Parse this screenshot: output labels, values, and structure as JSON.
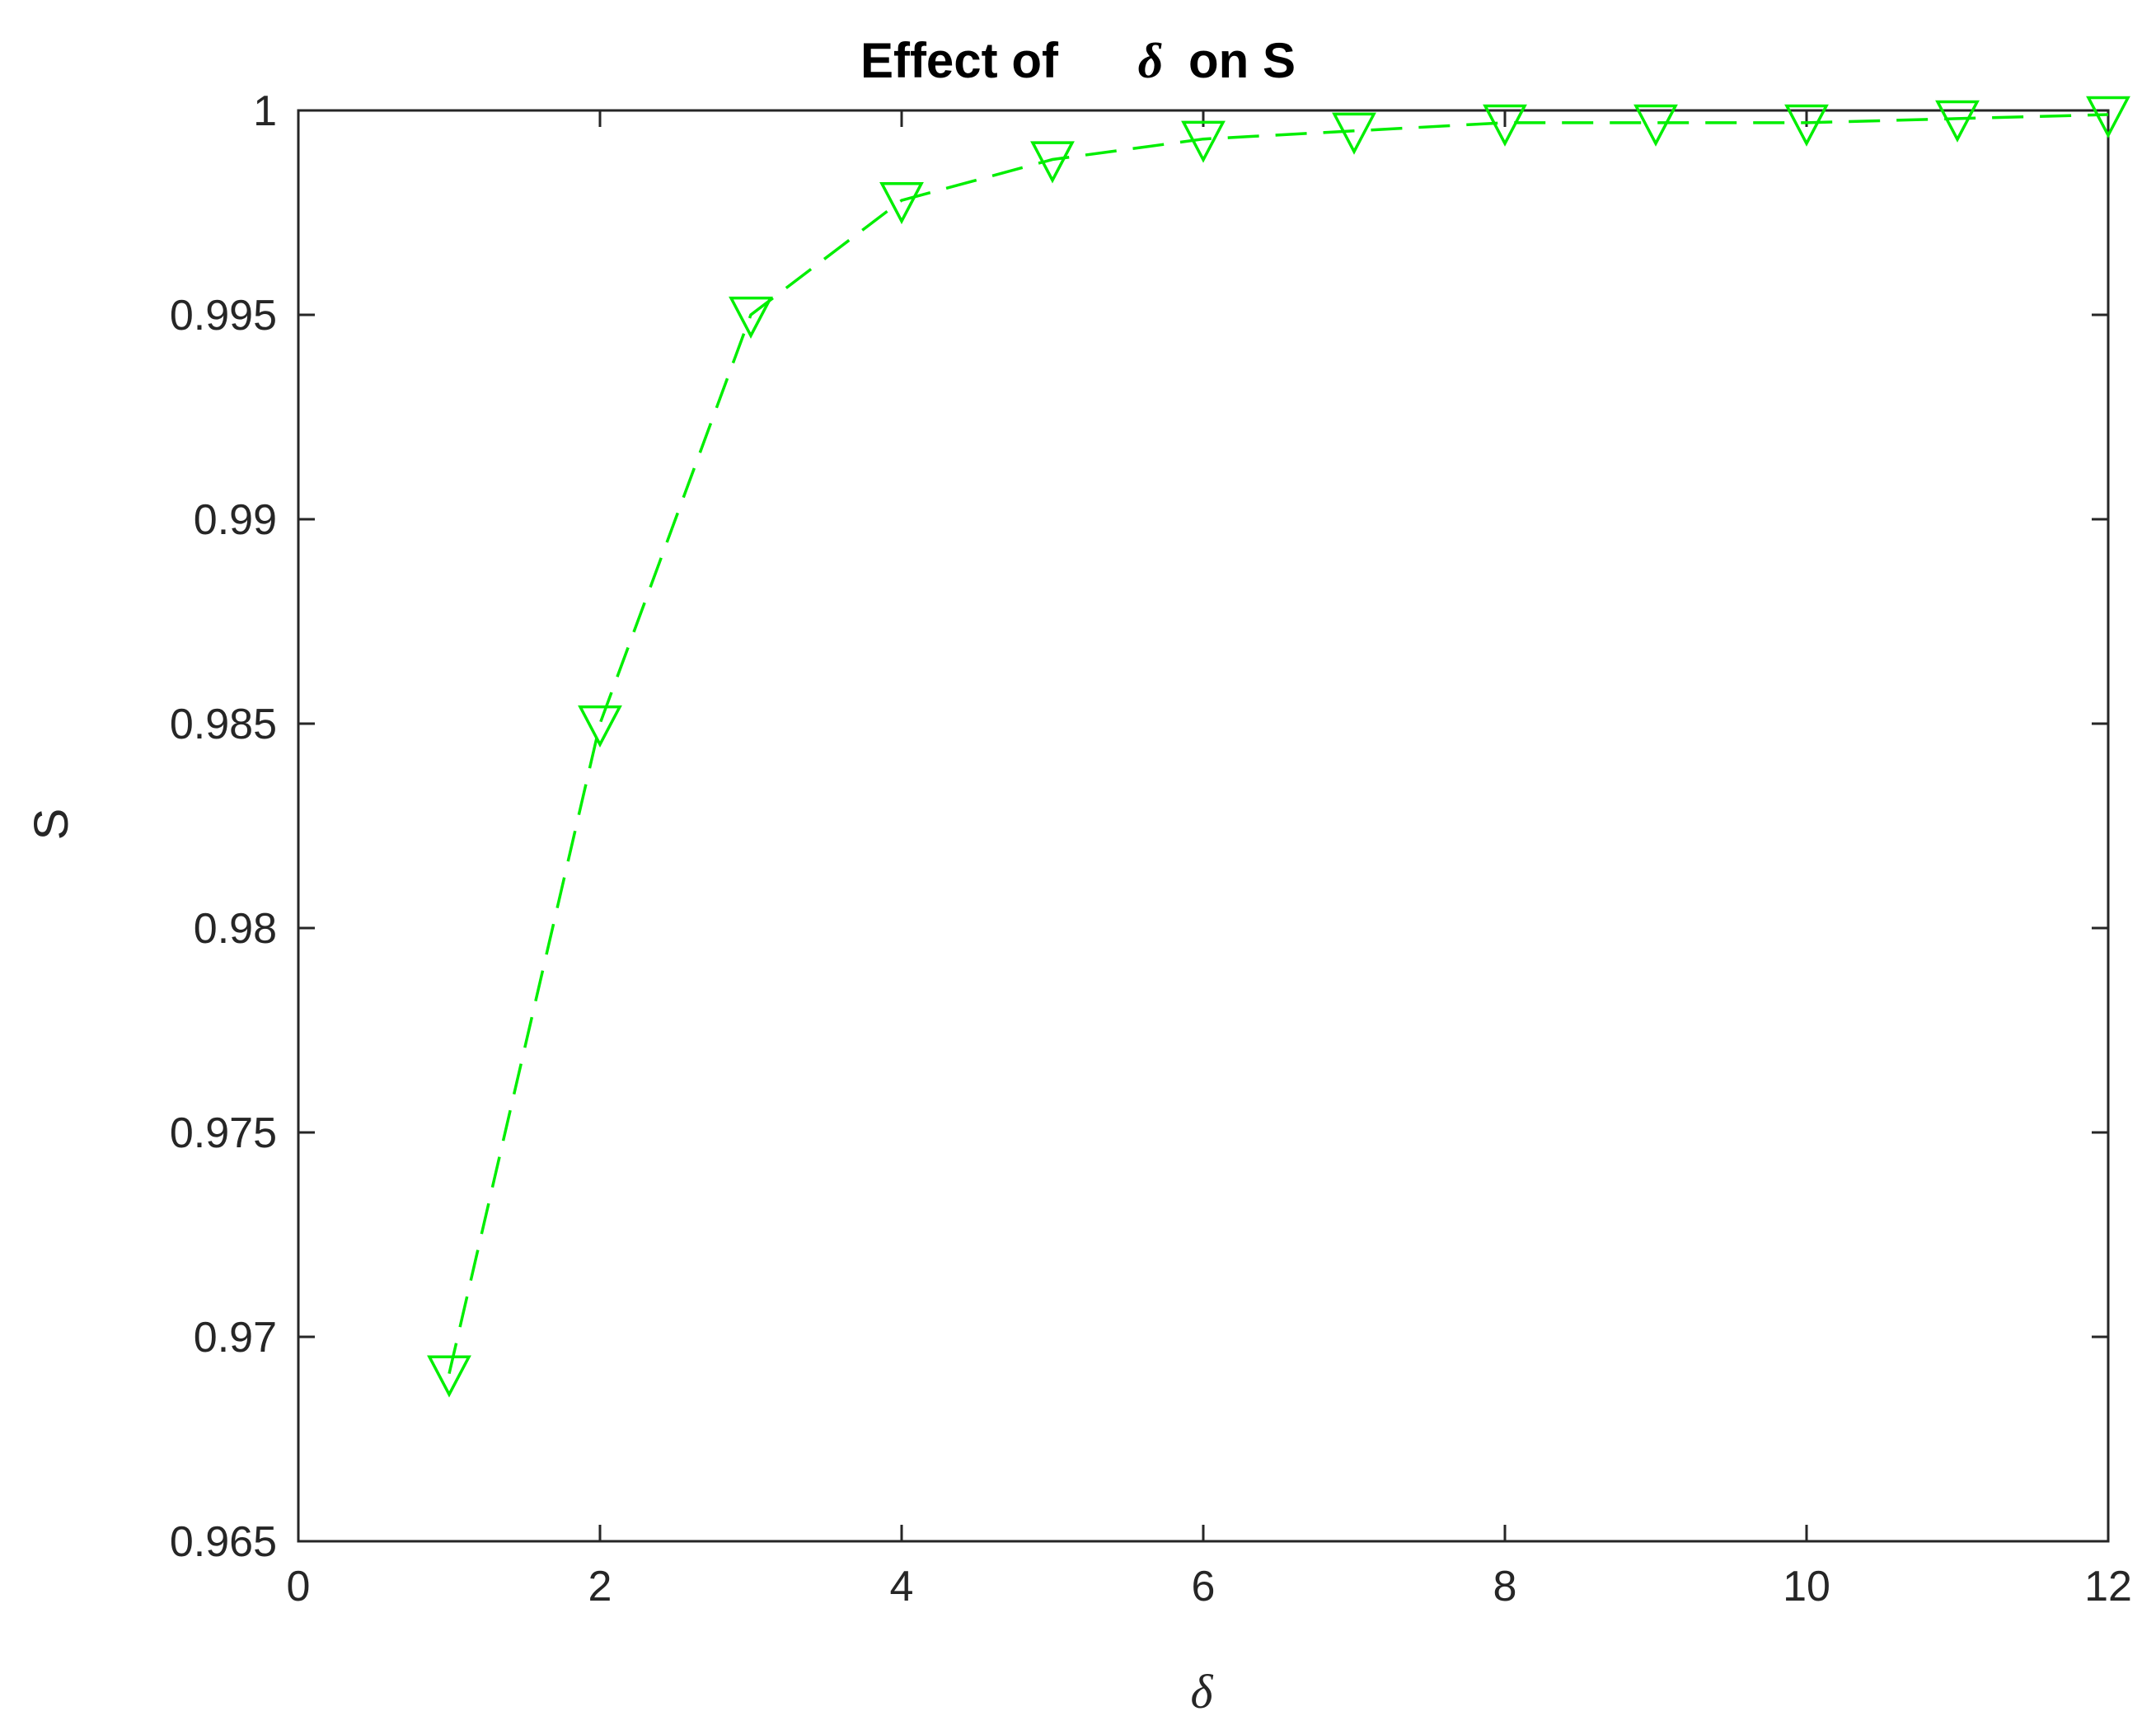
{
  "chart_data": {
    "type": "line",
    "title": "Effect of δ on S",
    "title_parts": {
      "prefix": "Effect of",
      "symbol": "δ",
      "suffix": "on S"
    },
    "xlabel": "δ",
    "ylabel": "S",
    "xlim": [
      0,
      12
    ],
    "ylim": [
      0.965,
      1.0
    ],
    "x_ticks": [
      0,
      2,
      4,
      6,
      8,
      10,
      12
    ],
    "x_tick_labels": [
      "0",
      "2",
      "4",
      "6",
      "8",
      "10",
      "12"
    ],
    "y_ticks": [
      0.965,
      0.97,
      0.975,
      0.98,
      0.985,
      0.99,
      0.995,
      1.0
    ],
    "y_tick_labels": [
      "0.965",
      "0.97",
      "0.975",
      "0.98",
      "0.985",
      "0.99",
      "0.995",
      "1"
    ],
    "grid": false,
    "legend": "none",
    "series": [
      {
        "color": "#00ee00",
        "line_style": "dashed",
        "marker": "triangle-down",
        "x": [
          1,
          2,
          3,
          4,
          5,
          6,
          7,
          8,
          9,
          10,
          11,
          12
        ],
        "values": [
          0.9691,
          0.985,
          0.995,
          0.9978,
          0.9988,
          0.9993,
          0.9995,
          0.9997,
          0.9997,
          0.9997,
          0.9998,
          0.9999
        ]
      }
    ]
  }
}
